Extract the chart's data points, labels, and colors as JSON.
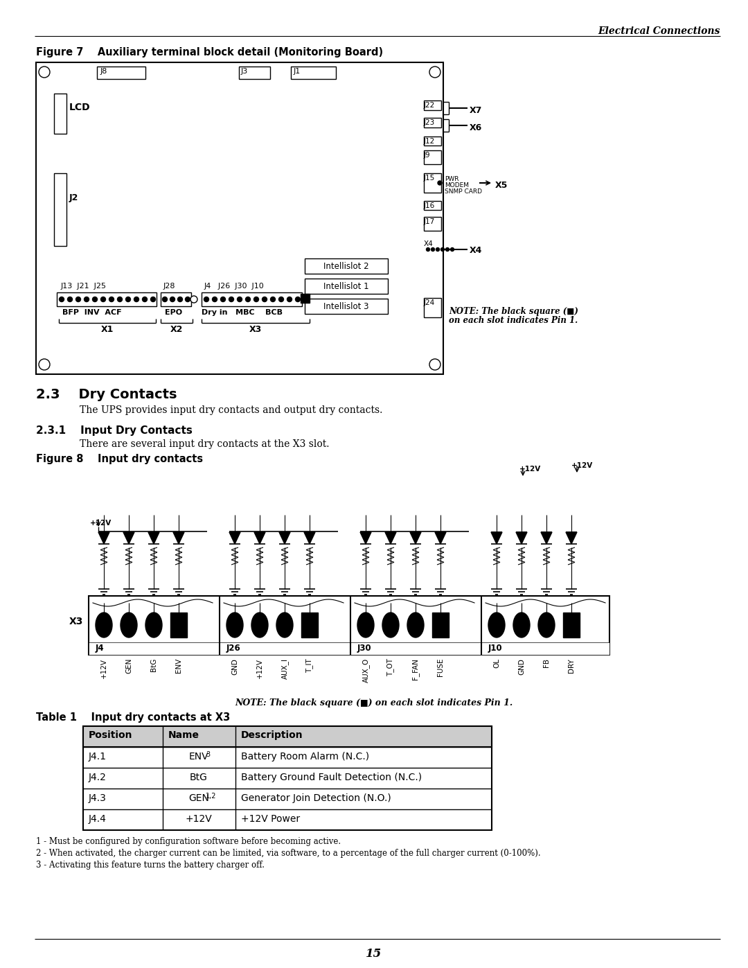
{
  "page_header_right": "Electrical Connections",
  "fig7_title": "Figure 7    Auxiliary terminal block detail (Monitoring Board)",
  "fig8_title": "Figure 8    Input dry contacts",
  "sec23_title": "2.3    Dry Contacts",
  "sec23_body": "The UPS provides input dry contacts and output dry contacts.",
  "sec231_title": "2.3.1    Input Dry Contacts",
  "sec231_body": "There are several input dry contacts at the X3 slot.",
  "table1_title": "Table 1    Input dry contacts at X3",
  "table_headers": [
    "Position",
    "Name",
    "Description"
  ],
  "table_rows": [
    [
      "J4.1",
      "ENV",
      "3",
      "Battery Room Alarm (N.C.)"
    ],
    [
      "J4.2",
      "BtG",
      "",
      "Battery Ground Fault Detection (N.C.)"
    ],
    [
      "J4.3",
      "GEN",
      "1,2",
      "Generator Join Detection (N.O.)"
    ],
    [
      "J4.4",
      "+12V",
      "",
      "+12V Power"
    ]
  ],
  "table_footnotes": [
    "1 - Must be configured by configuration software before becoming active.",
    "2 - When activated, the charger current can be limited, via software, to a percentage of the full charger current (0-100%).",
    "3 - Activating this feature turns the battery charger off."
  ],
  "note_fig7_line1": "NOTE: The black square (■)",
  "note_fig7_line2": "on each slot indicates Pin 1.",
  "note_fig8": "NOTE: The black square (■) on each slot indicates Pin 1.",
  "page_number": "15",
  "pin_labels": [
    "+12V",
    "GEN",
    "BtG",
    "ENV",
    "GND",
    "+12V",
    "AUX_I",
    "T_IT",
    "AUX_O",
    "T_OT",
    "F_FAN",
    "FUSE",
    "OL",
    "GND",
    "FB",
    "DRY"
  ],
  "connector_names": [
    "J4",
    "J26",
    "J30",
    "J10"
  ],
  "bg_color": "#ffffff"
}
